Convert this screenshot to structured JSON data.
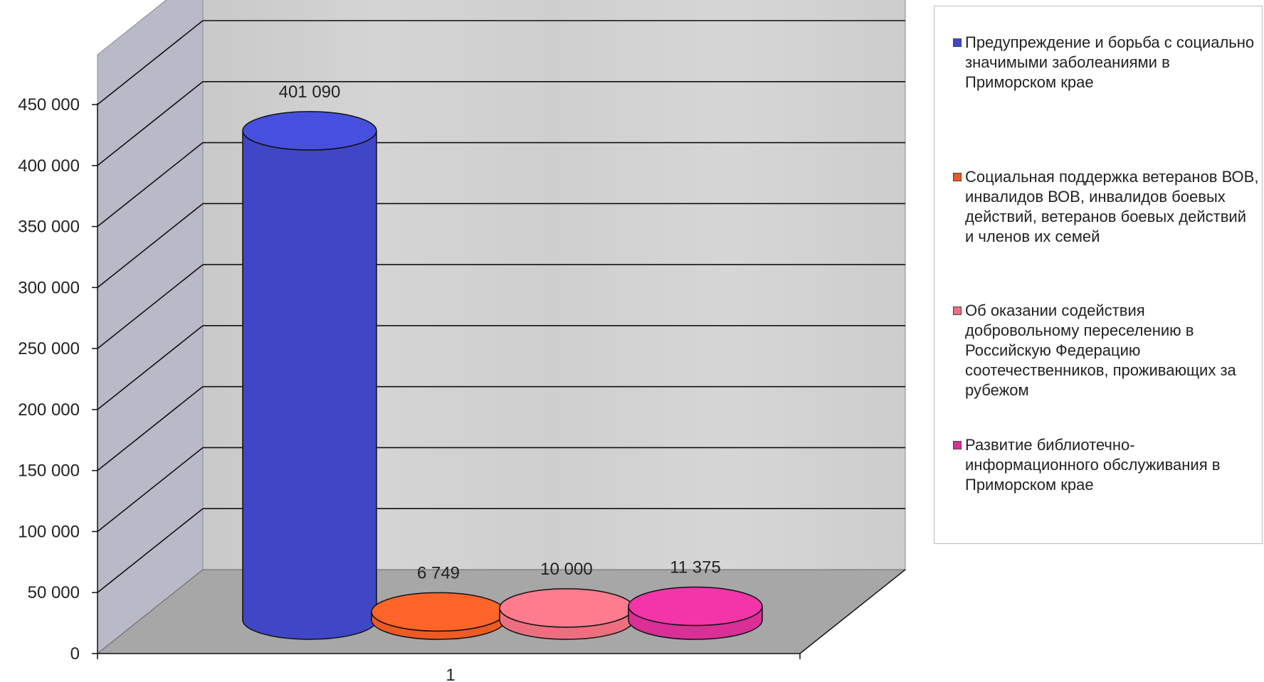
{
  "chart_data": {
    "type": "bar",
    "style": "3d-cylinder",
    "categories": [
      "1"
    ],
    "series": [
      {
        "name": "Предупреждение и борьба с социально значимыми заболеаниями в Приморском крае",
        "values": [
          401090
        ],
        "label": "401 090",
        "color": "#3f47c6"
      },
      {
        "name": "Социальная поддержка ветеранов ВОВ, инвалидов ВОВ, инвалидов боевых действий, ветеранов боевых действий и членов их семей",
        "values": [
          6749
        ],
        "label": "6 749",
        "color": "#ef5a24"
      },
      {
        "name": "Об оказании содействия добровольному переселению в Российскую Федерацию соотечественников, проживающих за рубежом",
        "values": [
          10000
        ],
        "label": "10 000",
        "color": "#ec6f7f"
      },
      {
        "name": "Развитие библиотечно-информационного обслуживания в Приморском крае",
        "values": [
          11375
        ],
        "label": "11 375",
        "color": "#d92f97"
      }
    ],
    "y_ticks": [
      "0",
      "50 000",
      "100 000",
      "150 000",
      "200 000",
      "250 000",
      "300 000",
      "350 000",
      "400 000",
      "450 000"
    ],
    "ylim": [
      0,
      450000
    ],
    "grid": true,
    "legend_position": "right",
    "title": "",
    "xlabel": "",
    "ylabel": ""
  }
}
